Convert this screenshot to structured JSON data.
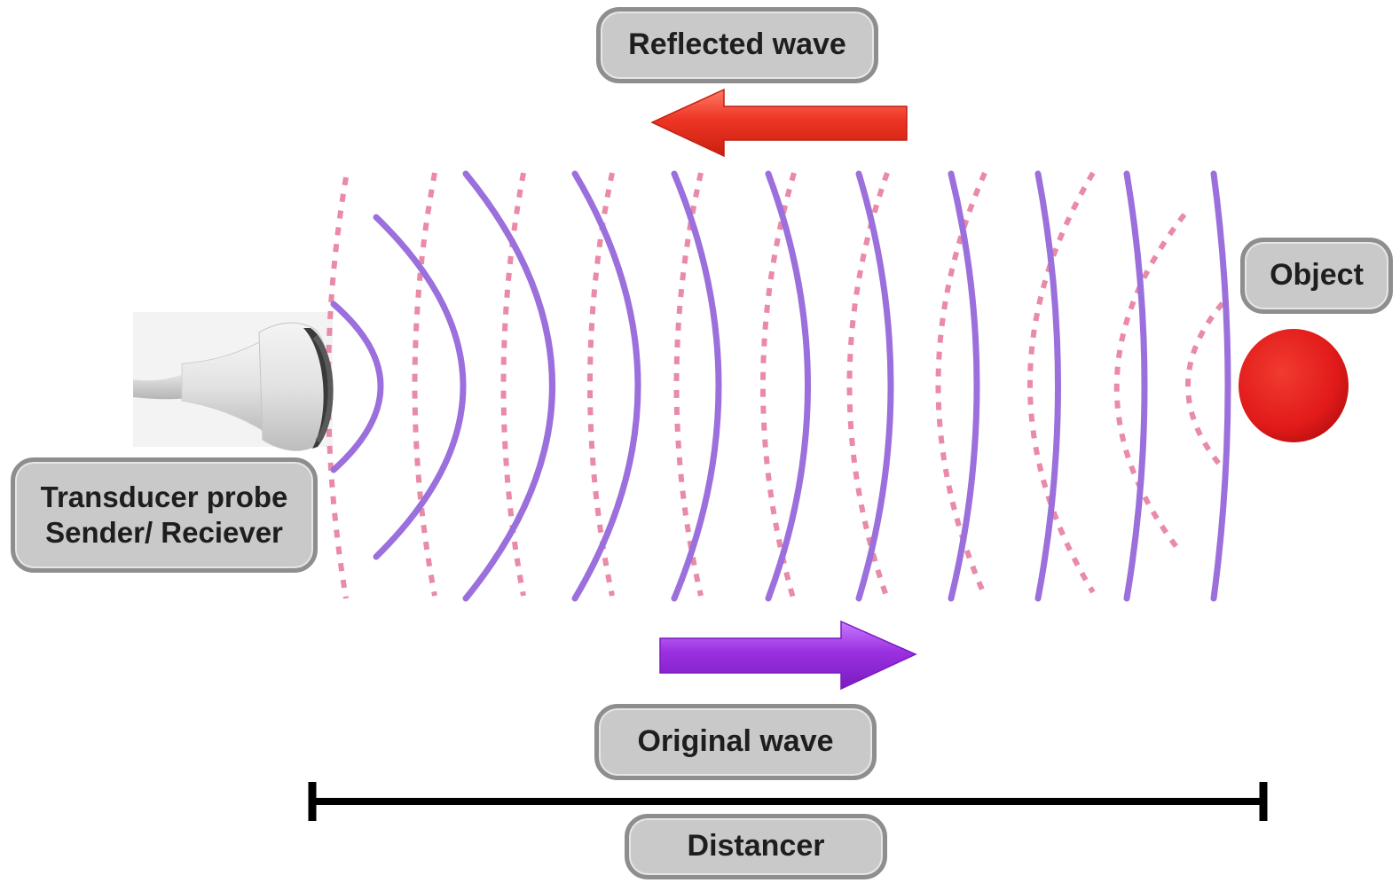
{
  "labels": {
    "reflected_wave": "Reflected wave",
    "original_wave": "Original wave",
    "object": "Object",
    "probe_line1": "Transducer probe",
    "probe_line2": "Sender/ Reciever",
    "distance": "Distancer"
  },
  "colors": {
    "original_wave": "#9b6fdc",
    "reflected_wave": "#e98aa6",
    "reflected_arrow": "#ee3524",
    "original_arrow": "#9b30e0",
    "object": "#e11a1a",
    "label_fill": "#c9c9c9",
    "label_border": "#8e8e8e",
    "distance_bar": "#000000"
  },
  "icons": {
    "probe": "transducer-probe-icon",
    "object": "object-sphere-icon"
  }
}
